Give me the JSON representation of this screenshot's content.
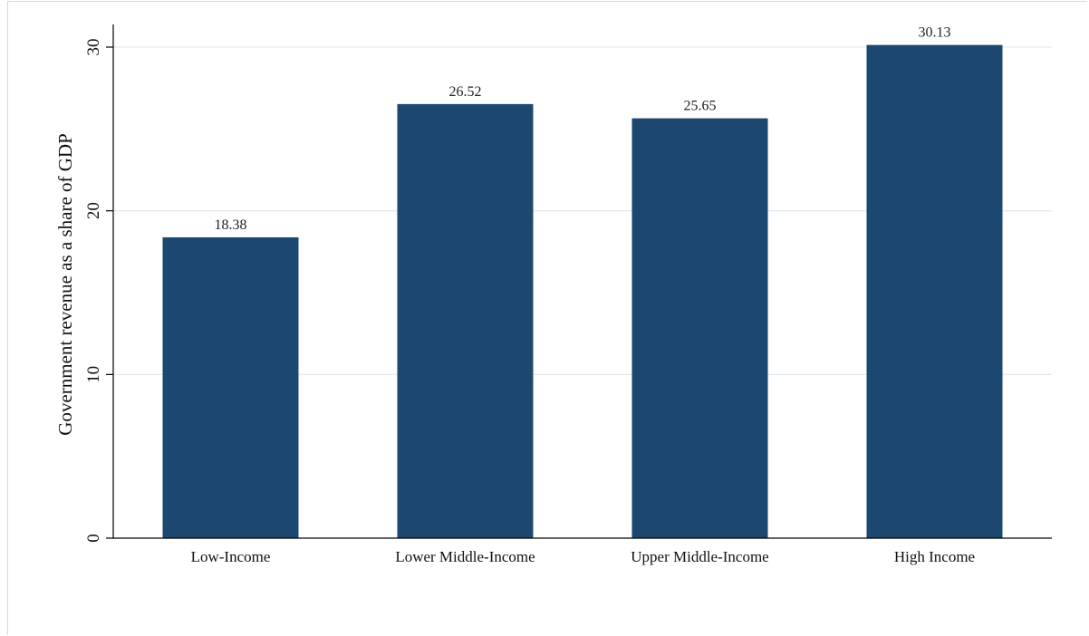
{
  "chart_data": {
    "type": "bar",
    "title": "",
    "xlabel": "",
    "ylabel": "Government revenue as a share of GDP",
    "categories": [
      "Low-Income",
      "Lower Middle-Income",
      "Upper Middle-Income",
      "High Income"
    ],
    "values": [
      18.38,
      26.52,
      25.65,
      30.13
    ],
    "data_labels": [
      "18.38",
      "26.52",
      "25.65",
      "30.13"
    ],
    "ylim": [
      0,
      30
    ],
    "yticks": [
      0,
      10,
      20,
      30
    ],
    "grid": true,
    "bar_color": "#1c476f",
    "grid_color": "#e3ebee"
  }
}
